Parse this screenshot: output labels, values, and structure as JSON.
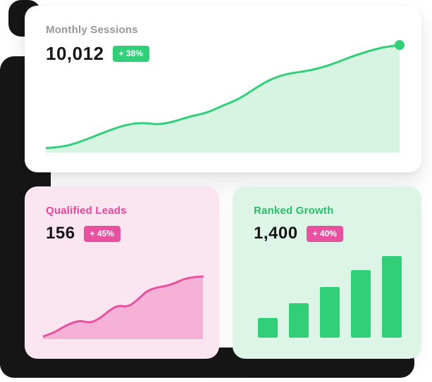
{
  "page": {
    "background_color": "#ffffff",
    "backdrop_color": "#161616"
  },
  "cards": [
    {
      "id": "monthly-sessions",
      "label": "Monthly Sessions",
      "label_color": "#97969c",
      "value": "10,012",
      "badge": {
        "text": "+ 38%",
        "bg": "#31d078",
        "fg": "#ffffff"
      },
      "card_bg": "#ffffff"
    },
    {
      "id": "qualified-leads",
      "label": "Qualified Leads",
      "label_color": "#e8459b",
      "value": "156",
      "badge": {
        "text": "+ 45%",
        "bg": "#e8519f",
        "fg": "#ffffff"
      },
      "card_bg": "#fbe5f0"
    },
    {
      "id": "ranked-growth",
      "label": "Ranked Growth",
      "label_color": "#2bbd68",
      "value": "1,400",
      "badge": {
        "text": "+ 40%",
        "bg": "#e8519f",
        "fg": "#ffffff"
      },
      "card_bg": "#ddf5e7"
    }
  ],
  "chart_data": [
    {
      "type": "area",
      "title": "Monthly Sessions",
      "current_value": 10012,
      "change_pct": 38,
      "axes_shown": false,
      "legend": false,
      "line_color": "#31d078",
      "fill_color": "#d7f3e2",
      "end_dot": true,
      "values_relative": [
        3,
        4,
        8,
        14,
        20,
        25,
        27,
        25,
        28,
        33,
        36,
        43,
        49,
        59,
        68,
        73,
        75,
        78,
        83,
        89,
        94,
        98,
        100
      ]
    },
    {
      "type": "area",
      "title": "Qualified Leads",
      "current_value": 156,
      "change_pct": 45,
      "axes_shown": false,
      "legend": false,
      "line_color": "#e8519f",
      "fill_color": "#f5b1d6",
      "end_dot": false,
      "values_relative": [
        2,
        7,
        16,
        24,
        28,
        24,
        31,
        44,
        53,
        50,
        61,
        76,
        82,
        84,
        89,
        96,
        99,
        100
      ]
    },
    {
      "type": "bar",
      "title": "Ranked Growth",
      "current_value": 1400,
      "change_pct": 40,
      "axes_shown": false,
      "legend": false,
      "bar_color": "#31d078",
      "values_relative": [
        24,
        42,
        62,
        83,
        100
      ]
    }
  ]
}
